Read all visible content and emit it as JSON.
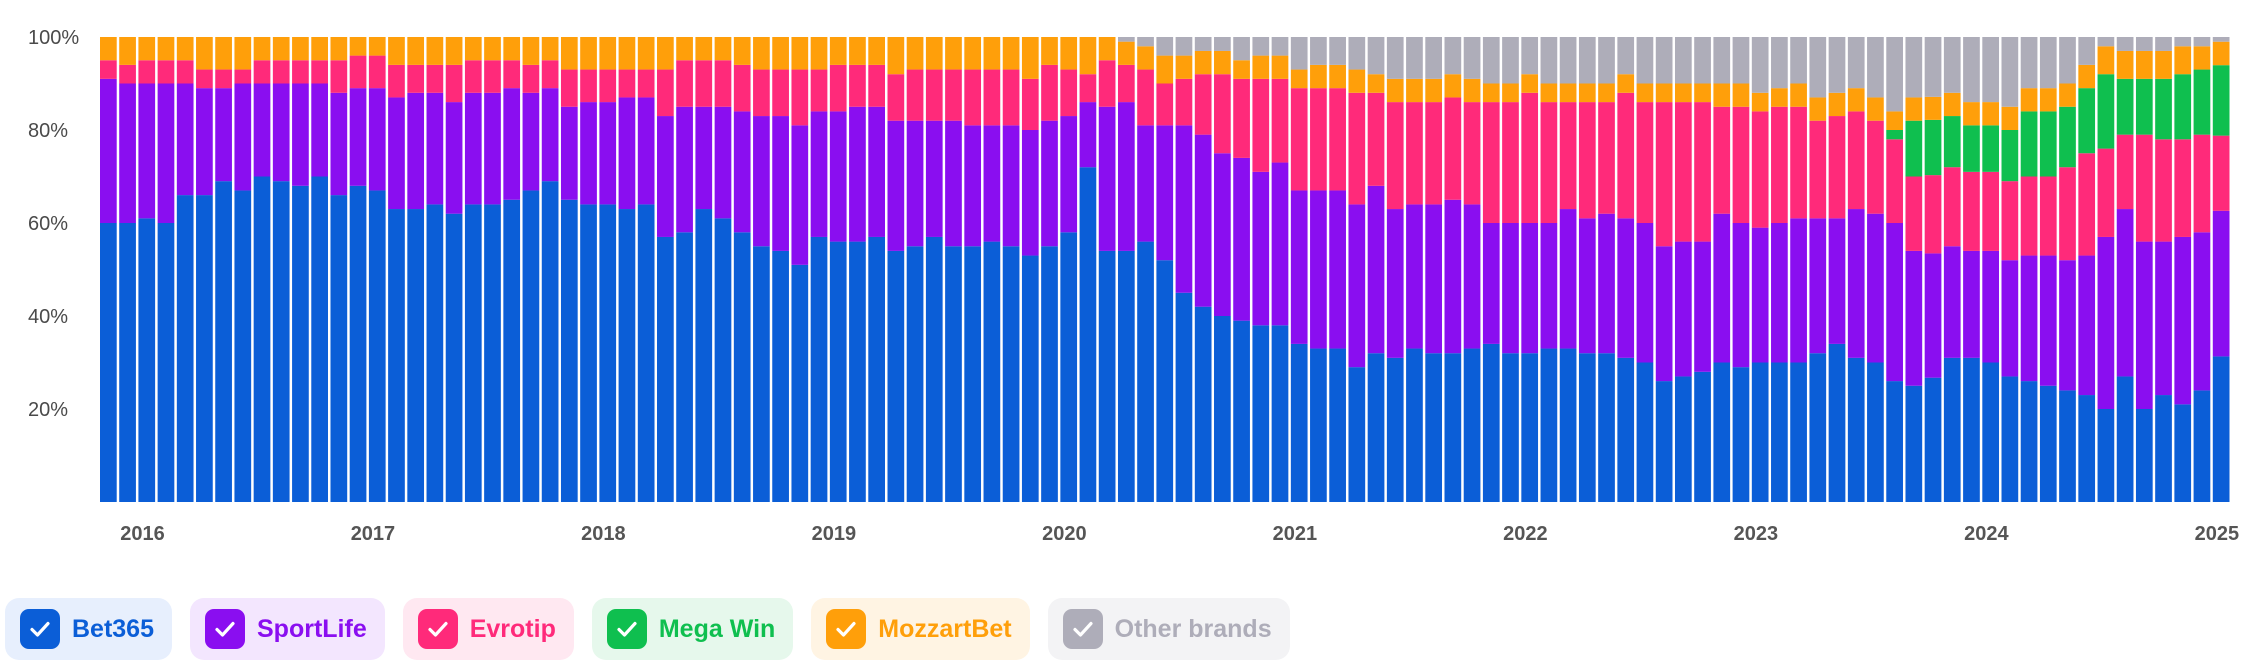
{
  "chart_data": {
    "type": "bar",
    "stacked": true,
    "normalized": true,
    "x_range": [
      "2015-12",
      "2025-06"
    ],
    "year_ticks": [
      "2016",
      "2017",
      "2018",
      "2019",
      "2020",
      "2021",
      "2022",
      "2023",
      "2024",
      "2025"
    ],
    "y_ticks": [
      "100%",
      "80%",
      "60%",
      "40%",
      "20%"
    ],
    "ylim": [
      0,
      100
    ],
    "grid": false,
    "legend_position": "bottom-left",
    "series": [
      {
        "name": "Bet365",
        "color": "#0b5ed7",
        "values": [
          60,
          60,
          61,
          60,
          66,
          66,
          69,
          67,
          70,
          69,
          68,
          70,
          66,
          68,
          67,
          63,
          63,
          64,
          62,
          64,
          64,
          65,
          67,
          69,
          65,
          64,
          64,
          63,
          64,
          57,
          58,
          63,
          61,
          58,
          55,
          54,
          51,
          57,
          56,
          56,
          57,
          54,
          55,
          57,
          55,
          55,
          56,
          55,
          53,
          55,
          58,
          72,
          54,
          54,
          56,
          52,
          45,
          42,
          40,
          39,
          38,
          38,
          34,
          33,
          33,
          29,
          32,
          31,
          33,
          32,
          32,
          33,
          34,
          32,
          32,
          33,
          33,
          32,
          32,
          31,
          30,
          26,
          27,
          28,
          30,
          29,
          30,
          30,
          30,
          32,
          34,
          31,
          30,
          26,
          25,
          27,
          31,
          31,
          30,
          27,
          26,
          25,
          24,
          23,
          20,
          27,
          20,
          23,
          21,
          24,
          31
        ]
      },
      {
        "name": "SportLife",
        "color": "#8a0ef0",
        "values": [
          31,
          30,
          29,
          30,
          24,
          23,
          20,
          23,
          20,
          21,
          22,
          20,
          22,
          21,
          22,
          24,
          25,
          24,
          24,
          24,
          24,
          24,
          21,
          20,
          20,
          22,
          22,
          24,
          23,
          26,
          27,
          22,
          24,
          26,
          28,
          29,
          30,
          27,
          28,
          29,
          28,
          28,
          27,
          25,
          27,
          26,
          25,
          26,
          27,
          27,
          25,
          14,
          31,
          32,
          25,
          29,
          36,
          37,
          35,
          35,
          33,
          35,
          33,
          34,
          34,
          35,
          36,
          32,
          31,
          32,
          33,
          31,
          26,
          28,
          28,
          27,
          30,
          29,
          30,
          30,
          30,
          29,
          29,
          28,
          32,
          31,
          29,
          30,
          31,
          29,
          27,
          32,
          32,
          34,
          29,
          27,
          24,
          23,
          24,
          25,
          27,
          28,
          28,
          30,
          37,
          36,
          36,
          33,
          36,
          34,
          31
        ]
      },
      {
        "name": "Evrotip",
        "color": "#ff2a7a",
        "values": [
          4,
          4,
          5,
          5,
          5,
          4,
          4,
          3,
          5,
          5,
          5,
          5,
          7,
          7,
          7,
          7,
          6,
          6,
          8,
          7,
          7,
          6,
          6,
          6,
          8,
          7,
          7,
          6,
          6,
          10,
          10,
          10,
          10,
          10,
          10,
          10,
          12,
          9,
          10,
          9,
          9,
          10,
          11,
          11,
          11,
          12,
          12,
          12,
          11,
          12,
          10,
          6,
          10,
          8,
          12,
          9,
          10,
          13,
          17,
          17,
          20,
          18,
          22,
          22,
          22,
          24,
          20,
          23,
          22,
          22,
          22,
          22,
          26,
          26,
          28,
          26,
          23,
          25,
          24,
          27,
          26,
          31,
          30,
          30,
          23,
          25,
          25,
          25,
          24,
          21,
          22,
          21,
          20,
          18,
          16,
          17,
          17,
          17,
          17,
          17,
          17,
          17,
          20,
          22,
          19,
          16,
          23,
          22,
          21,
          21,
          16
        ]
      },
      {
        "name": "Mega Win",
        "color": "#0fbf4f",
        "values": [
          0,
          0,
          0,
          0,
          0,
          0,
          0,
          0,
          0,
          0,
          0,
          0,
          0,
          0,
          0,
          0,
          0,
          0,
          0,
          0,
          0,
          0,
          0,
          0,
          0,
          0,
          0,
          0,
          0,
          0,
          0,
          0,
          0,
          0,
          0,
          0,
          0,
          0,
          0,
          0,
          0,
          0,
          0,
          0,
          0,
          0,
          0,
          0,
          0,
          0,
          0,
          0,
          0,
          0,
          0,
          0,
          0,
          0,
          0,
          0,
          0,
          0,
          0,
          0,
          0,
          0,
          0,
          0,
          0,
          0,
          0,
          0,
          0,
          0,
          0,
          0,
          0,
          0,
          0,
          0,
          0,
          0,
          0,
          0,
          0,
          0,
          0,
          0,
          0,
          0,
          0,
          0,
          0,
          2,
          12,
          12,
          11,
          10,
          10,
          11,
          14,
          14,
          13,
          14,
          16,
          12,
          12,
          13,
          14,
          14,
          15
        ]
      },
      {
        "name": "MozzartBet",
        "color": "#ff9f0a",
        "values": [
          5,
          6,
          5,
          5,
          5,
          7,
          7,
          7,
          5,
          5,
          5,
          5,
          5,
          4,
          4,
          6,
          6,
          6,
          6,
          5,
          5,
          5,
          6,
          5,
          7,
          7,
          7,
          7,
          7,
          7,
          5,
          5,
          5,
          6,
          7,
          7,
          7,
          7,
          6,
          6,
          6,
          8,
          7,
          7,
          7,
          7,
          7,
          7,
          9,
          6,
          7,
          8,
          5,
          5,
          5,
          6,
          5,
          5,
          5,
          4,
          5,
          5,
          4,
          5,
          5,
          5,
          4,
          5,
          5,
          5,
          5,
          5,
          4,
          4,
          4,
          4,
          4,
          4,
          4,
          4,
          4,
          4,
          4,
          4,
          5,
          5,
          4,
          4,
          5,
          5,
          5,
          5,
          5,
          4,
          5,
          5,
          5,
          5,
          5,
          5,
          5,
          5,
          5,
          5,
          6,
          6,
          6,
          6,
          6,
          5,
          5
        ]
      },
      {
        "name": "Other brands",
        "color": "#aeadb9",
        "values": [
          0,
          0,
          0,
          0,
          0,
          0,
          0,
          0,
          0,
          0,
          0,
          0,
          0,
          0,
          0,
          0,
          0,
          0,
          0,
          0,
          0,
          0,
          0,
          0,
          0,
          0,
          0,
          0,
          0,
          0,
          0,
          0,
          0,
          0,
          0,
          0,
          0,
          0,
          0,
          0,
          0,
          0,
          0,
          0,
          0,
          0,
          0,
          0,
          0,
          0,
          0,
          0,
          0,
          1,
          2,
          4,
          4,
          3,
          3,
          5,
          4,
          4,
          7,
          6,
          6,
          7,
          8,
          9,
          9,
          9,
          8,
          9,
          10,
          10,
          8,
          10,
          10,
          10,
          10,
          8,
          10,
          10,
          10,
          10,
          10,
          10,
          12,
          11,
          10,
          13,
          12,
          11,
          13,
          16,
          13,
          13,
          12,
          14,
          14,
          15,
          11,
          11,
          10,
          6,
          2,
          3,
          3,
          3,
          2,
          2,
          1
        ]
      }
    ]
  },
  "legend": [
    {
      "label": "Bet365",
      "color": "#0b5ed7",
      "bg": "#e7effd",
      "checked": true
    },
    {
      "label": "SportLife",
      "color": "#8a0ef0",
      "bg": "#f3e6fe",
      "checked": true
    },
    {
      "label": "Evrotip",
      "color": "#ff2a7a",
      "bg": "#ffe8f1",
      "checked": true
    },
    {
      "label": "Mega Win",
      "color": "#0fbf4f",
      "bg": "#e6f8ec",
      "checked": true
    },
    {
      "label": "MozzartBet",
      "color": "#ff9f0a",
      "bg": "#fff4e3",
      "checked": true
    },
    {
      "label": "Other brands",
      "color": "#aeadb9",
      "bg": "#f3f3f5",
      "checked": true
    }
  ]
}
